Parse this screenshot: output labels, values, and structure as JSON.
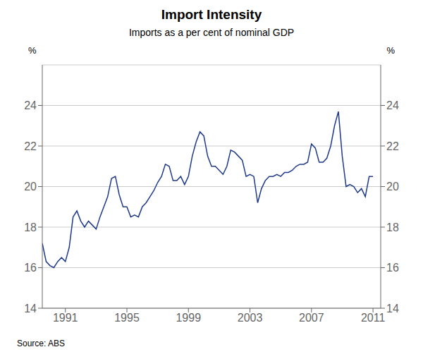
{
  "chart_data": {
    "type": "line",
    "title": "Import Intensity",
    "subtitle": "Imports as a per cent of nominal GDP",
    "ylabel": "%",
    "y2label": "%",
    "annotations": [
      "Source: ABS"
    ],
    "grid": true,
    "xlim": [
      1989.5,
      2011.5
    ],
    "xticks": [
      1991,
      1995,
      1999,
      2003,
      2007,
      2011
    ],
    "ylim": [
      14,
      26
    ],
    "yticks": [
      14,
      16,
      18,
      20,
      22,
      24
    ],
    "y2lim": [
      14,
      26
    ],
    "y2ticks": [
      14,
      16,
      18,
      20,
      22,
      24
    ],
    "color": "#1f3a8a",
    "x": [
      1989.5,
      1989.75,
      1990.0,
      1990.25,
      1990.5,
      1990.75,
      1991.0,
      1991.25,
      1991.5,
      1991.75,
      1992.0,
      1992.25,
      1992.5,
      1992.75,
      1993.0,
      1993.25,
      1993.5,
      1993.75,
      1994.0,
      1994.25,
      1994.5,
      1994.75,
      1995.0,
      1995.25,
      1995.5,
      1995.75,
      1996.0,
      1996.25,
      1996.5,
      1996.75,
      1997.0,
      1997.25,
      1997.5,
      1997.75,
      1998.0,
      1998.25,
      1998.5,
      1998.75,
      1999.0,
      1999.25,
      1999.5,
      1999.75,
      2000.0,
      2000.25,
      2000.5,
      2000.75,
      2001.0,
      2001.25,
      2001.5,
      2001.75,
      2002.0,
      2002.25,
      2002.5,
      2002.75,
      2003.0,
      2003.25,
      2003.5,
      2003.75,
      2004.0,
      2004.25,
      2004.5,
      2004.75,
      2005.0,
      2005.25,
      2005.5,
      2005.75,
      2006.0,
      2006.25,
      2006.5,
      2006.75,
      2007.0,
      2007.25,
      2007.5,
      2007.75,
      2008.0,
      2008.25,
      2008.5,
      2008.75,
      2009.0,
      2009.25,
      2009.5,
      2009.75,
      2010.0,
      2010.25,
      2010.5,
      2010.75,
      2011.0
    ],
    "values": [
      17.2,
      16.3,
      16.1,
      16.0,
      16.3,
      16.5,
      16.3,
      17.0,
      18.5,
      18.8,
      18.3,
      18.0,
      18.3,
      18.1,
      17.9,
      18.5,
      19.0,
      19.5,
      20.4,
      20.5,
      19.6,
      19.0,
      19.0,
      18.5,
      18.6,
      18.5,
      19.0,
      19.2,
      19.5,
      19.8,
      20.2,
      20.5,
      21.1,
      21.0,
      20.3,
      20.3,
      20.5,
      20.1,
      20.5,
      21.5,
      22.2,
      22.7,
      22.5,
      21.5,
      21.0,
      21.0,
      20.8,
      20.6,
      21.0,
      21.8,
      21.7,
      21.5,
      21.3,
      20.5,
      20.6,
      20.5,
      19.2,
      19.9,
      20.3,
      20.5,
      20.5,
      20.6,
      20.5,
      20.7,
      20.7,
      20.8,
      21.0,
      21.1,
      21.1,
      21.2,
      22.1,
      21.9,
      21.2,
      21.2,
      21.4,
      22.0,
      23.0,
      23.7,
      21.5,
      20.0,
      20.1,
      20.0,
      19.7,
      19.9,
      19.5,
      20.5,
      20.5
    ]
  }
}
